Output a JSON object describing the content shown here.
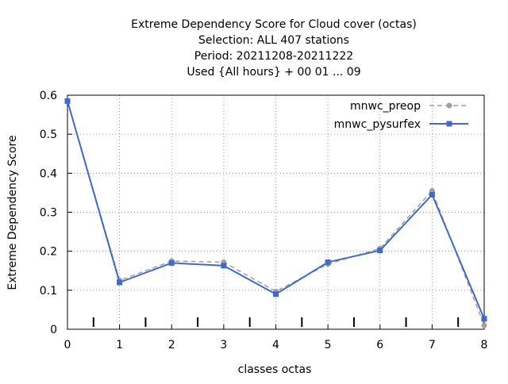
{
  "chart_data": {
    "type": "line",
    "title_lines": [
      "Extreme Dependency Score  for Cloud cover (octas)",
      "Selection: ALL    407 stations",
      "Period: 20211208-20211222",
      "Used {All hours} + 00 01 ... 09"
    ],
    "xlabel": "classes octas",
    "ylabel": "Extreme Dependency Score",
    "xlim": [
      0,
      8
    ],
    "ylim": [
      0,
      0.6
    ],
    "xticks": [
      0,
      1,
      2,
      3,
      4,
      5,
      6,
      7,
      8
    ],
    "yticks": [
      0,
      0.1,
      0.2,
      0.3,
      0.4,
      0.5,
      0.6
    ],
    "minor_marks_x": [
      0.5,
      1.5,
      2.5,
      3.5,
      4.5,
      5.5,
      6.5,
      7.5
    ],
    "grid": true,
    "legend_position": "top-right",
    "x": [
      0,
      1,
      2,
      3,
      4,
      5,
      6,
      7,
      8
    ],
    "series": [
      {
        "name": "mnwc_preop",
        "color": "#a0a0a0",
        "dashed": true,
        "values": [
          0.585,
          0.125,
          0.175,
          0.172,
          0.097,
          0.167,
          0.207,
          0.355,
          0.01
        ]
      },
      {
        "name": "mnwc_pysurfex",
        "color": "#4169cd",
        "dashed": false,
        "values": [
          0.585,
          0.12,
          0.17,
          0.163,
          0.09,
          0.172,
          0.202,
          0.345,
          0.027
        ]
      }
    ]
  }
}
